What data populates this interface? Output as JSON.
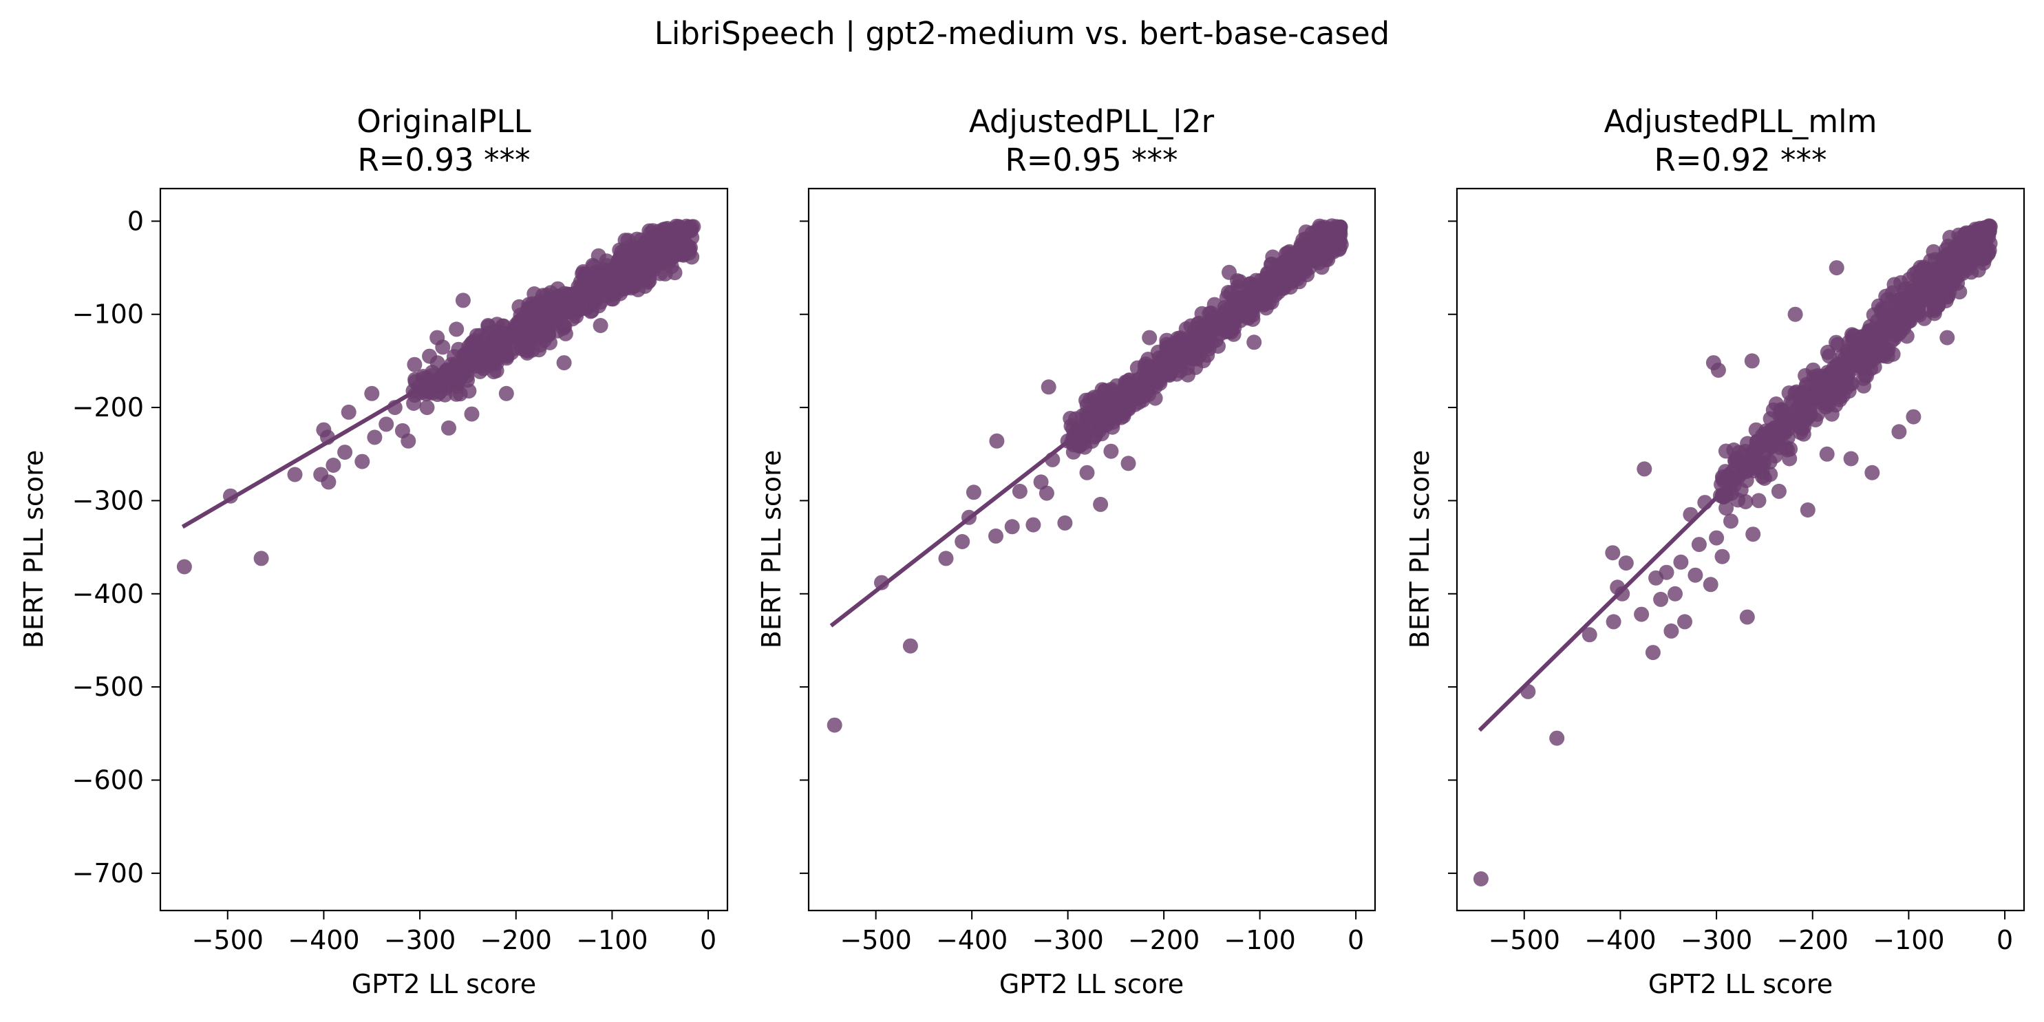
{
  "figure": {
    "suptitle": "LibriSpeech | gpt2-medium vs. bert-base-cased"
  },
  "chart_data": [
    {
      "type": "scatter",
      "title": "OriginalPLL",
      "subtitle": "R=0.93 ***",
      "xlabel": "GPT2 LL score",
      "ylabel": "BERT PLL score",
      "xlim": [
        -570,
        20
      ],
      "ylim": [
        -740,
        35
      ],
      "xticks": [
        -500,
        -400,
        -300,
        -200,
        -100,
        0
      ],
      "yticks": [
        0,
        -100,
        -200,
        -300,
        -400,
        -500,
        -600,
        -700
      ],
      "show_yticklabels": true,
      "color": "#6b3d6e",
      "regression": {
        "x": [
          -545,
          -15
        ],
        "y": [
          -327,
          -8
        ]
      },
      "cloud": {
        "x_lo": -310,
        "x_hi": -15,
        "y_lo": -240,
        "y_hi": -5,
        "center_slope": 0.6,
        "center_intercept": -2,
        "spread": 38,
        "count": 650,
        "seed": 11
      },
      "points": [
        {
          "x": -545,
          "y": -371
        },
        {
          "x": -465,
          "y": -362
        },
        {
          "x": -497,
          "y": -295
        },
        {
          "x": -430,
          "y": -272
        },
        {
          "x": -403,
          "y": -272
        },
        {
          "x": -395,
          "y": -280
        },
        {
          "x": -390,
          "y": -262
        },
        {
          "x": -378,
          "y": -248
        },
        {
          "x": -360,
          "y": -258
        },
        {
          "x": -400,
          "y": -224
        },
        {
          "x": -396,
          "y": -232
        },
        {
          "x": -374,
          "y": -205
        },
        {
          "x": -350,
          "y": -185
        },
        {
          "x": -347,
          "y": -232
        },
        {
          "x": -335,
          "y": -218
        },
        {
          "x": -326,
          "y": -200
        },
        {
          "x": -318,
          "y": -225
        },
        {
          "x": -312,
          "y": -236
        },
        {
          "x": -305,
          "y": -170
        },
        {
          "x": -290,
          "y": -145
        },
        {
          "x": -282,
          "y": -125
        },
        {
          "x": -262,
          "y": -116
        },
        {
          "x": -255,
          "y": -85
        },
        {
          "x": -246,
          "y": -207
        },
        {
          "x": -229,
          "y": -112
        },
        {
          "x": -270,
          "y": -222
        },
        {
          "x": -210,
          "y": -185
        },
        {
          "x": -181,
          "y": -78
        },
        {
          "x": -150,
          "y": -152
        },
        {
          "x": -112,
          "y": -112
        }
      ]
    },
    {
      "type": "scatter",
      "title": "AdjustedPLL_l2r",
      "subtitle": "R=0.95 ***",
      "xlabel": "GPT2 LL score",
      "ylabel": "BERT PLL score",
      "xlim": [
        -570,
        20
      ],
      "ylim": [
        -740,
        35
      ],
      "xticks": [
        -500,
        -400,
        -300,
        -200,
        -100,
        0
      ],
      "yticks": [
        0,
        -100,
        -200,
        -300,
        -400,
        -500,
        -600,
        -700
      ],
      "show_yticklabels": false,
      "color": "#6b3d6e",
      "regression": {
        "x": [
          -545,
          -15
        ],
        "y": [
          -433,
          -8
        ]
      },
      "cloud": {
        "x_lo": -300,
        "x_hi": -15,
        "y_lo": -280,
        "y_hi": -5,
        "center_slope": 0.8,
        "center_intercept": 4,
        "spread": 36,
        "count": 650,
        "seed": 23
      },
      "points": [
        {
          "x": -543,
          "y": -541
        },
        {
          "x": -464,
          "y": -456
        },
        {
          "x": -494,
          "y": -388
        },
        {
          "x": -427,
          "y": -362
        },
        {
          "x": -410,
          "y": -344
        },
        {
          "x": -403,
          "y": -318
        },
        {
          "x": -398,
          "y": -291
        },
        {
          "x": -375,
          "y": -338
        },
        {
          "x": -374,
          "y": -236
        },
        {
          "x": -358,
          "y": -328
        },
        {
          "x": -350,
          "y": -290
        },
        {
          "x": -336,
          "y": -326
        },
        {
          "x": -328,
          "y": -280
        },
        {
          "x": -322,
          "y": -292
        },
        {
          "x": -316,
          "y": -256
        },
        {
          "x": -303,
          "y": -324
        },
        {
          "x": -300,
          "y": -236
        },
        {
          "x": -294,
          "y": -240
        },
        {
          "x": -280,
          "y": -270
        },
        {
          "x": -266,
          "y": -304
        },
        {
          "x": -255,
          "y": -247
        },
        {
          "x": -237,
          "y": -260
        },
        {
          "x": -215,
          "y": -125
        },
        {
          "x": -197,
          "y": -128
        },
        {
          "x": -175,
          "y": -165
        },
        {
          "x": -150,
          "y": -130
        },
        {
          "x": -106,
          "y": -130
        },
        {
          "x": -320,
          "y": -178
        },
        {
          "x": -132,
          "y": -55
        }
      ]
    },
    {
      "type": "scatter",
      "title": "AdjustedPLL_mlm",
      "subtitle": "R=0.92 ***",
      "xlabel": "GPT2 LL score",
      "ylabel": "BERT PLL score",
      "xlim": [
        -570,
        20
      ],
      "ylim": [
        -740,
        35
      ],
      "xticks": [
        -500,
        -400,
        -300,
        -200,
        -100,
        0
      ],
      "yticks": [
        0,
        -100,
        -200,
        -300,
        -400,
        -500,
        -600,
        -700
      ],
      "show_yticklabels": false,
      "color": "#6b3d6e",
      "regression": {
        "x": [
          -545,
          -15
        ],
        "y": [
          -545,
          -8
        ]
      },
      "cloud": {
        "x_lo": -300,
        "x_hi": -15,
        "y_lo": -330,
        "y_hi": -5,
        "center_slope": 1.0,
        "center_intercept": 8,
        "spread": 48,
        "count": 650,
        "seed": 37
      },
      "points": [
        {
          "x": -545,
          "y": -706
        },
        {
          "x": -466,
          "y": -555
        },
        {
          "x": -496,
          "y": -505
        },
        {
          "x": -432,
          "y": -444
        },
        {
          "x": -407,
          "y": -430
        },
        {
          "x": -403,
          "y": -393
        },
        {
          "x": -398,
          "y": -400
        },
        {
          "x": -394,
          "y": -367
        },
        {
          "x": -408,
          "y": -356
        },
        {
          "x": -378,
          "y": -422
        },
        {
          "x": -375,
          "y": -266
        },
        {
          "x": -366,
          "y": -463
        },
        {
          "x": -363,
          "y": -383
        },
        {
          "x": -358,
          "y": -406
        },
        {
          "x": -352,
          "y": -377
        },
        {
          "x": -347,
          "y": -440
        },
        {
          "x": -343,
          "y": -400
        },
        {
          "x": -337,
          "y": -366
        },
        {
          "x": -333,
          "y": -430
        },
        {
          "x": -327,
          "y": -315
        },
        {
          "x": -322,
          "y": -380
        },
        {
          "x": -318,
          "y": -347
        },
        {
          "x": -312,
          "y": -302
        },
        {
          "x": -306,
          "y": -390
        },
        {
          "x": -300,
          "y": -340
        },
        {
          "x": -294,
          "y": -360
        },
        {
          "x": -285,
          "y": -322
        },
        {
          "x": -268,
          "y": -425
        },
        {
          "x": -262,
          "y": -336
        },
        {
          "x": -256,
          "y": -300
        },
        {
          "x": -250,
          "y": -276
        },
        {
          "x": -235,
          "y": -290
        },
        {
          "x": -224,
          "y": -255
        },
        {
          "x": -205,
          "y": -310
        },
        {
          "x": -185,
          "y": -250
        },
        {
          "x": -160,
          "y": -255
        },
        {
          "x": -138,
          "y": -270
        },
        {
          "x": -110,
          "y": -226
        },
        {
          "x": -95,
          "y": -210
        },
        {
          "x": -303,
          "y": -152
        },
        {
          "x": -298,
          "y": -160
        },
        {
          "x": -263,
          "y": -150
        },
        {
          "x": -218,
          "y": -100
        },
        {
          "x": -175,
          "y": -50
        },
        {
          "x": -60,
          "y": -125
        }
      ]
    }
  ]
}
